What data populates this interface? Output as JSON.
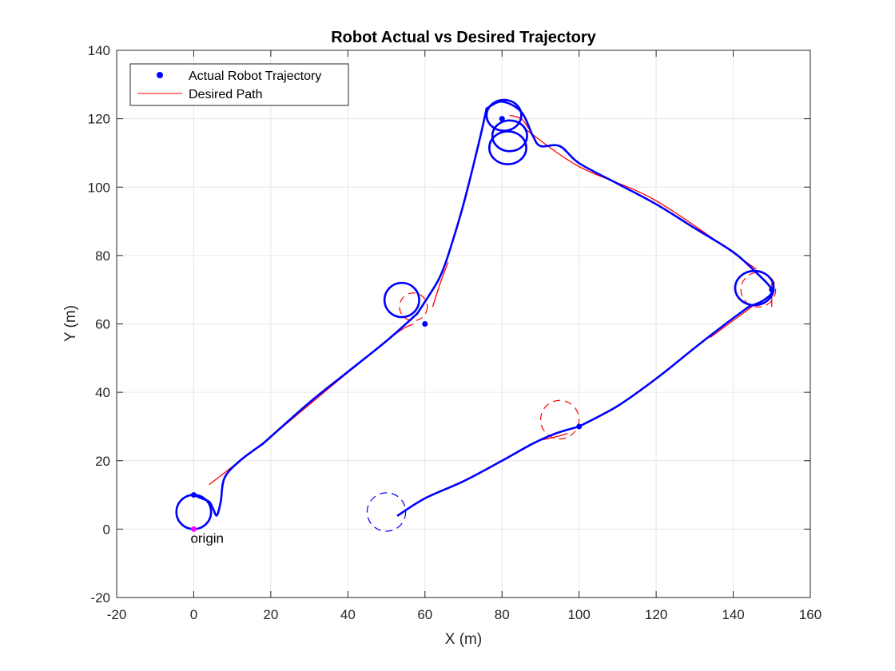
{
  "chart_data": {
    "type": "line",
    "title": "Robot Actual vs Desired Trajectory",
    "xlabel": "X (m)",
    "ylabel": "Y (m)",
    "xlim": [
      -20,
      160
    ],
    "ylim": [
      -20,
      140
    ],
    "xticks": [
      -20,
      0,
      20,
      40,
      60,
      80,
      100,
      120,
      140,
      160
    ],
    "yticks": [
      -20,
      0,
      20,
      40,
      60,
      80,
      100,
      120,
      140
    ],
    "xtick_labels": [
      "-20",
      "0",
      "20",
      "40",
      "60",
      "80",
      "100",
      "120",
      "140",
      "160"
    ],
    "ytick_labels": [
      "-20",
      "0",
      "20",
      "40",
      "60",
      "80",
      "100",
      "120",
      "140"
    ],
    "grid": true,
    "legend_position": "top-left",
    "colors": {
      "actual": "#0000ff",
      "desired": "#ff0000",
      "origin": "#ff00ff",
      "axis": "#262626",
      "grid": "#e6e6e6"
    },
    "legend": [
      {
        "label": "Actual Robot Trajectory",
        "marker": "dot",
        "color": "#0000ff"
      },
      {
        "label": "Desired Path",
        "marker": "line",
        "color": "#ff0000"
      }
    ],
    "annotations": [
      {
        "text": "origin",
        "x": 0,
        "y": 0
      }
    ],
    "waypoints": [
      {
        "x": 0,
        "y": 0,
        "color": "#ff00ff"
      },
      {
        "x": 0,
        "y": 10
      },
      {
        "x": 60,
        "y": 60
      },
      {
        "x": 80,
        "y": 120
      },
      {
        "x": 150,
        "y": 70
      },
      {
        "x": 100,
        "y": 30
      }
    ],
    "series": [
      {
        "name": "Desired Path",
        "color": "#ff0000",
        "segments": [
          {
            "x": [
              4,
              12,
              20
            ],
            "y": [
              13,
              20,
              27
            ]
          },
          {
            "x": [
              20,
              50,
              57
            ],
            "y": [
              27,
              55,
              60
            ]
          },
          {
            "x": [
              62,
              64,
              66
            ],
            "y": [
              65,
              72,
              78
            ]
          },
          {
            "x": [
              82,
              85,
              87
            ],
            "y": [
              121,
              120,
              117
            ]
          },
          {
            "x": [
              86,
              100,
              120,
              146
            ],
            "y": [
              117,
              106,
              96,
              76
            ]
          },
          {
            "x": [
              150,
              150
            ],
            "y": [
              72,
              65
            ]
          },
          {
            "x": [
              146,
              140,
              134
            ],
            "y": [
              66,
              61,
              56
            ]
          },
          {
            "x": [
              90,
              94,
              97
            ],
            "y": [
              26,
              27,
              28
            ]
          }
        ]
      },
      {
        "name": "Actual Robot Trajectory",
        "color": "#0000ff",
        "segments": [
          {
            "x": [
              0,
              2,
              4,
              5,
              6,
              7,
              8,
              12,
              18
            ],
            "y": [
              10,
              9,
              8,
              6,
              4,
              8,
              15,
              20,
              25
            ]
          },
          {
            "x": [
              18,
              30,
              40,
              50,
              58
            ],
            "y": [
              25,
              37,
              46,
              55,
              63
            ]
          },
          {
            "x": [
              58,
              62,
              64,
              66,
              70,
              74,
              76
            ],
            "y": [
              63,
              70,
              74,
              80,
              95,
              113,
              123
            ]
          },
          {
            "x": [
              76,
              80,
              85,
              88,
              90,
              95,
              100,
              110,
              120,
              130,
              140,
              146
            ],
            "y": [
              123,
              125,
              122,
              115,
              112,
              112,
              107,
              101,
              95,
              88,
              81,
              75
            ]
          },
          {
            "x": [
              146,
              150,
              148,
              144
            ],
            "y": [
              75,
              70,
              67,
              65
            ]
          },
          {
            "x": [
              144,
              138,
              130,
              120,
              110,
              100
            ],
            "y": [
              65,
              60,
              53,
              44,
              36,
              30
            ]
          },
          {
            "x": [
              100,
              94,
              88,
              80,
              70,
              60,
              53
            ],
            "y": [
              30,
              28,
              25,
              20,
              14,
              9,
              4
            ]
          }
        ],
        "loops": [
          {
            "cx": 0,
            "cy": 5,
            "rx": 4.5,
            "ry": 5
          },
          {
            "cx": 54,
            "cy": 67,
            "rx": 4.5,
            "ry": 5
          },
          {
            "cx": 80.5,
            "cy": 121,
            "rx": 4.5,
            "ry": 4.5
          },
          {
            "cx": 82,
            "cy": 115,
            "rx": 4.5,
            "ry": 4.5
          },
          {
            "cx": 81.5,
            "cy": 111.5,
            "rx": 4.8,
            "ry": 4.8
          },
          {
            "cx": 145.5,
            "cy": 70.5,
            "rx": 5,
            "ry": 5
          }
        ]
      }
    ],
    "dashed_circles": [
      {
        "cx": 57,
        "cy": 65,
        "r": 3.6,
        "color": "#ff0000"
      },
      {
        "cx": 146.5,
        "cy": 70,
        "r": 4.5,
        "color": "#ff0000"
      },
      {
        "cx": 95,
        "cy": 32,
        "r": 5,
        "color": "#ff0000"
      },
      {
        "cx": 50,
        "cy": 5,
        "r": 5,
        "color": "#0000ff"
      }
    ]
  }
}
